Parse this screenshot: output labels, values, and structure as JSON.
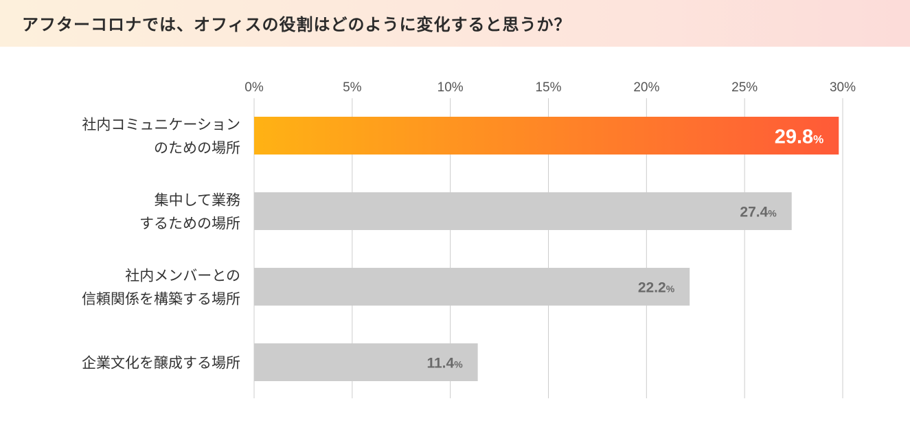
{
  "title": "アフターコロナでは、オフィスの役割はどのように変化すると思うか？",
  "colors": {
    "highlight_start": "#ffb214",
    "highlight_end": "#ff5a38",
    "bar": "#cccccc",
    "grid": "#cccccc",
    "label_dark": "#6a6a6a",
    "label_light": "#ffffff",
    "title_bg_start": "#fdf0dc",
    "title_bg_end": "#fcdcd9"
  },
  "chart_data": {
    "type": "bar",
    "orientation": "horizontal",
    "title": "アフターコロナでは、オフィスの役割はどのように変化すると思うか？",
    "xlabel": "",
    "ylabel": "",
    "xlim": [
      0,
      30
    ],
    "ticks": [
      0,
      5,
      10,
      15,
      20,
      25,
      30
    ],
    "tick_labels": [
      "0%",
      "5%",
      "10%",
      "15%",
      "20%",
      "25%",
      "30%"
    ],
    "tick_position": "top",
    "grid": true,
    "value_suffix": "%",
    "categories": [
      [
        "社内コミュニケーション",
        "のための場所"
      ],
      [
        "集中して業務",
        "するための場所"
      ],
      [
        "社内メンバーとの",
        "信頼関係を構築する場所"
      ],
      [
        "企業文化を醸成する場所"
      ]
    ],
    "values": [
      29.8,
      27.4,
      22.2,
      11.4
    ],
    "value_labels": [
      "29.8",
      "27.4",
      "22.2",
      "11.4"
    ],
    "highlight_index": 0
  }
}
